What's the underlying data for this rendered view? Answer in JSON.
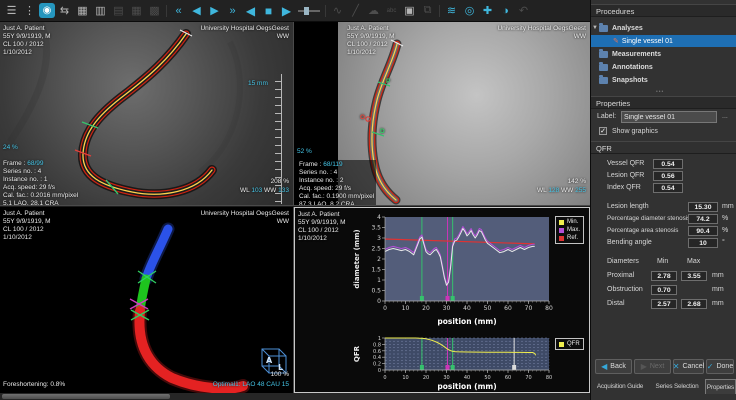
{
  "patient": {
    "lines": [
      "Just A. Patient",
      "55Y 9/9/1919, M",
      "CL 100 / 2012",
      "1/10/2012"
    ]
  },
  "hospital": {
    "name": "University Hospital OegsGeest",
    "ww_label": "WW"
  },
  "toolbar": {
    "icons": [
      {
        "name": "menu-icon",
        "glyph": "☰",
        "cls": "n"
      },
      {
        "name": "drag-handle-icon",
        "glyph": "⋮",
        "cls": "n"
      },
      {
        "name": "app-logo-icon",
        "glyph": "◉",
        "cls": "logo"
      },
      {
        "name": "compare-series-icon",
        "glyph": "⇆",
        "cls": "n"
      },
      {
        "name": "view-image-icon",
        "glyph": "▦",
        "cls": "n"
      },
      {
        "name": "browse-series-icon",
        "glyph": "▥",
        "cls": "n"
      },
      {
        "name": "grid-layout-1-icon",
        "glyph": "▤",
        "cls": "dim"
      },
      {
        "name": "grid-layout-2-icon",
        "glyph": "▦",
        "cls": "dim"
      },
      {
        "name": "grid-layout-3-icon",
        "glyph": "▩",
        "cls": "dim"
      },
      {
        "name": "separator",
        "glyph": "",
        "cls": "sep"
      },
      {
        "name": "first-frame-icon",
        "glyph": "«",
        "cls": "cyan"
      },
      {
        "name": "prev-frame-icon",
        "glyph": "◀",
        "cls": "cyan"
      },
      {
        "name": "play-icon",
        "glyph": "▶",
        "cls": "cyan"
      },
      {
        "name": "last-frame-icon",
        "glyph": "»",
        "cls": "cyan"
      },
      {
        "name": "play-reverse-icon",
        "glyph": "◀",
        "cls": "cyan big"
      },
      {
        "name": "stop-icon",
        "glyph": "■",
        "cls": "cyan big"
      },
      {
        "name": "play-forward-icon",
        "glyph": "▶",
        "cls": "cyan big"
      },
      {
        "name": "frame-speed-slider",
        "glyph": "",
        "cls": "slider"
      },
      {
        "name": "separator",
        "glyph": "",
        "cls": "sep"
      },
      {
        "name": "curve-measure-icon",
        "glyph": "∿",
        "cls": "dim"
      },
      {
        "name": "line-measure-icon",
        "glyph": "╱",
        "cls": "dim"
      },
      {
        "name": "region-measure-icon",
        "glyph": "☁",
        "cls": "dim"
      },
      {
        "name": "text-annotation-icon",
        "glyph": "abc",
        "cls": "dim"
      },
      {
        "name": "snapshot-camera-icon",
        "glyph": "▣",
        "cls": "n"
      },
      {
        "name": "copy-icon",
        "glyph": "⧉",
        "cls": "dim"
      },
      {
        "name": "separator",
        "glyph": "",
        "cls": "sep"
      },
      {
        "name": "layers-icon",
        "glyph": "≋",
        "cls": "cyan"
      },
      {
        "name": "magnifier-icon",
        "glyph": "◎",
        "cls": "cyan"
      },
      {
        "name": "pan-icon",
        "glyph": "✚",
        "cls": "cyan"
      },
      {
        "name": "contrast-icon",
        "glyph": "◑",
        "cls": "cyan"
      },
      {
        "name": "undo-icon",
        "glyph": "↶",
        "cls": "dim"
      }
    ]
  },
  "angio_left": {
    "frame_label": "Frame :",
    "frame_value": "68/99",
    "info_lines": [
      "Series no. : 4",
      "Instance no. : 1",
      "Acq. speed: 29 f/s",
      "Cal. fac.: 0.2016 mm/pixel",
      "5.1 LAO, 28.1 CRA"
    ],
    "zoom_pct": "208 %",
    "wl_label": "WL",
    "wl_value": "103",
    "ww_label": "WW",
    "ww_value": "133",
    "ruler_label": "15 mm",
    "scroll_pct": "24 %"
  },
  "angio_right": {
    "frame_label": "Frame :",
    "frame_value": "68/119",
    "info_lines": [
      "Series no. : 4",
      "Instance no. : 2",
      "Acq. speed: 29 f/s",
      "Cal. fac.: 0.1900 mm/pixel",
      "87.3 LAO, 8.2 CRA"
    ],
    "zoom_pct": "142 %",
    "wl_label": "WL",
    "wl_value": "128",
    "ww_label": "WW",
    "ww_value": "255",
    "scroll_pct": "52 %",
    "markers": {
      "proximal": "P",
      "obstruction": "O",
      "distal": "D"
    }
  },
  "vessel3d": {
    "foreshortening": "Foreshortening: 0.8%",
    "zoom_pct": "100 %",
    "optimal": "Optimal1: LAO 48 CAU 15",
    "cube_letters": {
      "a": "A",
      "l": "L"
    }
  },
  "chart_data": [
    {
      "type": "line",
      "title": "",
      "xlabel": "position (mm)",
      "ylabel": "diameter (mm)",
      "xlim": [
        0,
        80
      ],
      "ylim": [
        0,
        4
      ],
      "xticks": [
        0,
        10,
        20,
        30,
        40,
        50,
        60,
        70,
        80
      ],
      "yticks": [
        0,
        0.5,
        1,
        1.5,
        2,
        2.5,
        3,
        3.5,
        4
      ],
      "plot_bg": "#535d7a",
      "legend_position": "right",
      "legend": [
        {
          "label": "Min.",
          "color": "#f0ee4e"
        },
        {
          "label": "Max.",
          "color": "#b44fd8"
        },
        {
          "label": "Ref.",
          "color": "#e03232"
        }
      ],
      "vlines": [
        {
          "x": 18,
          "color": "#35c26d",
          "label": "P"
        },
        {
          "x": 30.5,
          "color": "#cc35b8",
          "label": "O"
        },
        {
          "x": 33,
          "color": "#35c26d",
          "label": "D"
        }
      ],
      "series": [
        {
          "name": "Ref.",
          "color": "#e03232",
          "width": 1.2,
          "x": [
            0,
            73
          ],
          "y": [
            2.95,
            2.72
          ]
        },
        {
          "name": "Max.",
          "color": "#b44fd8",
          "width": 1,
          "x": [
            0,
            2,
            4,
            6,
            8,
            10,
            12,
            14,
            16,
            17,
            18,
            19,
            20,
            21,
            22,
            24,
            25,
            26,
            27,
            28,
            29,
            30,
            31,
            32,
            33,
            34,
            35,
            36,
            37,
            38,
            39,
            40,
            41,
            42,
            43,
            44,
            45,
            46,
            47,
            48,
            49,
            50,
            52,
            54,
            56,
            58,
            60,
            62,
            64,
            66,
            68,
            70,
            72,
            73
          ],
          "y": [
            2.45,
            2.55,
            2.6,
            2.55,
            2.5,
            2.55,
            2.45,
            2.3,
            2.8,
            3.05,
            3.15,
            2.8,
            2.45,
            2.35,
            2.3,
            2.5,
            2.55,
            2.4,
            2.2,
            1.7,
            1.2,
            0.85,
            1.0,
            1.7,
            2.7,
            2.95,
            3.0,
            3.15,
            3.35,
            3.55,
            3.4,
            3.2,
            3.3,
            3.45,
            3.25,
            3.1,
            3.25,
            3.45,
            3.4,
            3.2,
            3.0,
            2.85,
            2.7,
            2.55,
            2.4,
            2.45,
            2.55,
            2.45,
            2.55,
            2.65,
            2.55,
            2.65,
            2.7,
            2.7
          ]
        },
        {
          "name": "Min.",
          "color": "#e8e8ea",
          "width": 1,
          "x": [
            0,
            2,
            4,
            6,
            8,
            10,
            12,
            14,
            16,
            17,
            18,
            19,
            20,
            21,
            22,
            24,
            25,
            26,
            27,
            28,
            29,
            30,
            31,
            32,
            33,
            34,
            35,
            36,
            37,
            38,
            39,
            40,
            41,
            42,
            43,
            44,
            45,
            46,
            47,
            48,
            49,
            50,
            52,
            54,
            56,
            58,
            60,
            62,
            64,
            66,
            68,
            70,
            72,
            73
          ],
          "y": [
            2.35,
            2.45,
            2.5,
            2.45,
            2.4,
            2.45,
            2.35,
            2.2,
            2.7,
            2.95,
            3.05,
            2.7,
            2.35,
            2.25,
            2.2,
            2.4,
            2.45,
            2.3,
            2.1,
            1.6,
            1.1,
            0.75,
            0.9,
            1.6,
            2.6,
            2.85,
            2.9,
            3.05,
            3.25,
            3.45,
            3.3,
            3.1,
            3.2,
            3.35,
            3.15,
            3.0,
            3.15,
            3.35,
            3.3,
            3.1,
            2.9,
            2.75,
            2.6,
            2.45,
            2.3,
            2.35,
            2.45,
            2.35,
            2.45,
            2.55,
            2.45,
            2.55,
            2.6,
            2.6
          ]
        }
      ]
    },
    {
      "type": "line",
      "title": "",
      "xlabel": "position (mm)",
      "ylabel": "QFR",
      "xlim": [
        0,
        80
      ],
      "ylim": [
        0,
        1
      ],
      "xticks": [
        0,
        10,
        20,
        30,
        40,
        50,
        60,
        70,
        80
      ],
      "yticks": [
        0,
        0.2,
        0.4,
        0.6,
        0.8,
        1
      ],
      "plot_bg": "#3e4a66",
      "grid_y_step": 0.1,
      "legend_position": "right",
      "legend": [
        {
          "label": "QFR",
          "color": "#f0ee4e"
        }
      ],
      "vlines": [
        {
          "x": 18,
          "color": "#35c26d",
          "label": "P"
        },
        {
          "x": 30.5,
          "color": "#cc35b8",
          "label": "O"
        },
        {
          "x": 33,
          "color": "#35c26d",
          "label": "D"
        },
        {
          "x": 63,
          "color": "#dcdcdc",
          "label": "index"
        }
      ],
      "series": [
        {
          "name": "QFR",
          "color": "#f0ee4e",
          "width": 1,
          "x": [
            0,
            4,
            8,
            12,
            15,
            17,
            18,
            19,
            20,
            21,
            22,
            23,
            24,
            25,
            26,
            27,
            28,
            29,
            30,
            31,
            32,
            33,
            34,
            35,
            37,
            40,
            45,
            50,
            55,
            60,
            63,
            66,
            70,
            72,
            73,
            73.5
          ],
          "y": [
            1.0,
            1.0,
            1.0,
            1.0,
            1.0,
            0.995,
            0.99,
            0.985,
            0.975,
            0.96,
            0.945,
            0.925,
            0.9,
            0.875,
            0.845,
            0.81,
            0.77,
            0.725,
            0.675,
            0.635,
            0.605,
            0.585,
            0.575,
            0.57,
            0.565,
            0.562,
            0.558,
            0.556,
            0.554,
            0.552,
            0.55,
            0.549,
            0.547,
            0.546,
            0.52,
            0.46
          ]
        }
      ]
    }
  ],
  "right_panel": {
    "procedures": {
      "title": "Procedures",
      "tree": [
        {
          "label": "Analyses"
        },
        {
          "label": "Single vessel 01"
        },
        {
          "label": "Measurements"
        },
        {
          "label": "Annotations"
        },
        {
          "label": "Snapshots"
        }
      ]
    },
    "properties": {
      "title": "Properties",
      "label_field": {
        "label": "Label:",
        "value": "Single vessel 01",
        "more_button": "..."
      },
      "show_graphics_label": "Show graphics",
      "qfr": {
        "title": "QFR",
        "rows": [
          {
            "label": "Vessel QFR",
            "value": "0.54"
          },
          {
            "label": "Lesion QFR",
            "value": "0.56"
          },
          {
            "label": "Index QFR",
            "value": "0.54"
          }
        ],
        "metrics": [
          {
            "label": "Lesion length",
            "value": "15.30",
            "unit": "mm"
          },
          {
            "label": "Percentage diameter stenosis",
            "value": "74.2",
            "unit": "%"
          },
          {
            "label": "Percentage area stenosis",
            "value": "90.4",
            "unit": "%"
          },
          {
            "label": "Bending angle",
            "value": "10",
            "unit": "°"
          }
        ],
        "diameters": {
          "header": {
            "c0": "Diameters",
            "min": "Min",
            "max": "Max"
          },
          "rows": [
            {
              "label": "Proximal",
              "min": "2.78",
              "max": "3.55",
              "unit": "mm"
            },
            {
              "label": "Obstruction",
              "min": "0.70",
              "max": "",
              "unit": "mm"
            },
            {
              "label": "Distal",
              "min": "2.57",
              "max": "2.68",
              "unit": "mm"
            }
          ]
        }
      }
    },
    "buttons": [
      {
        "label": "Back",
        "icon": "◀",
        "enabled": true
      },
      {
        "label": "Next",
        "icon": "▶",
        "enabled": false
      },
      {
        "label": "Cancel",
        "icon": "✕",
        "enabled": true
      },
      {
        "label": "Done",
        "icon": "✓",
        "enabled": true
      }
    ],
    "tabs": [
      {
        "label": "Acquisition Guide",
        "active": false
      },
      {
        "label": "Series Selection",
        "active": false
      },
      {
        "label": "Properties",
        "active": true
      }
    ]
  },
  "colors": {
    "accent_cyan": "#3fb7dd",
    "selection_blue": "#1e6fb4",
    "contour_red": "#cf2312",
    "centerline_yellow": "#ffd34d",
    "marker_green": "#35c26d",
    "marker_magenta": "#cc35b8"
  }
}
